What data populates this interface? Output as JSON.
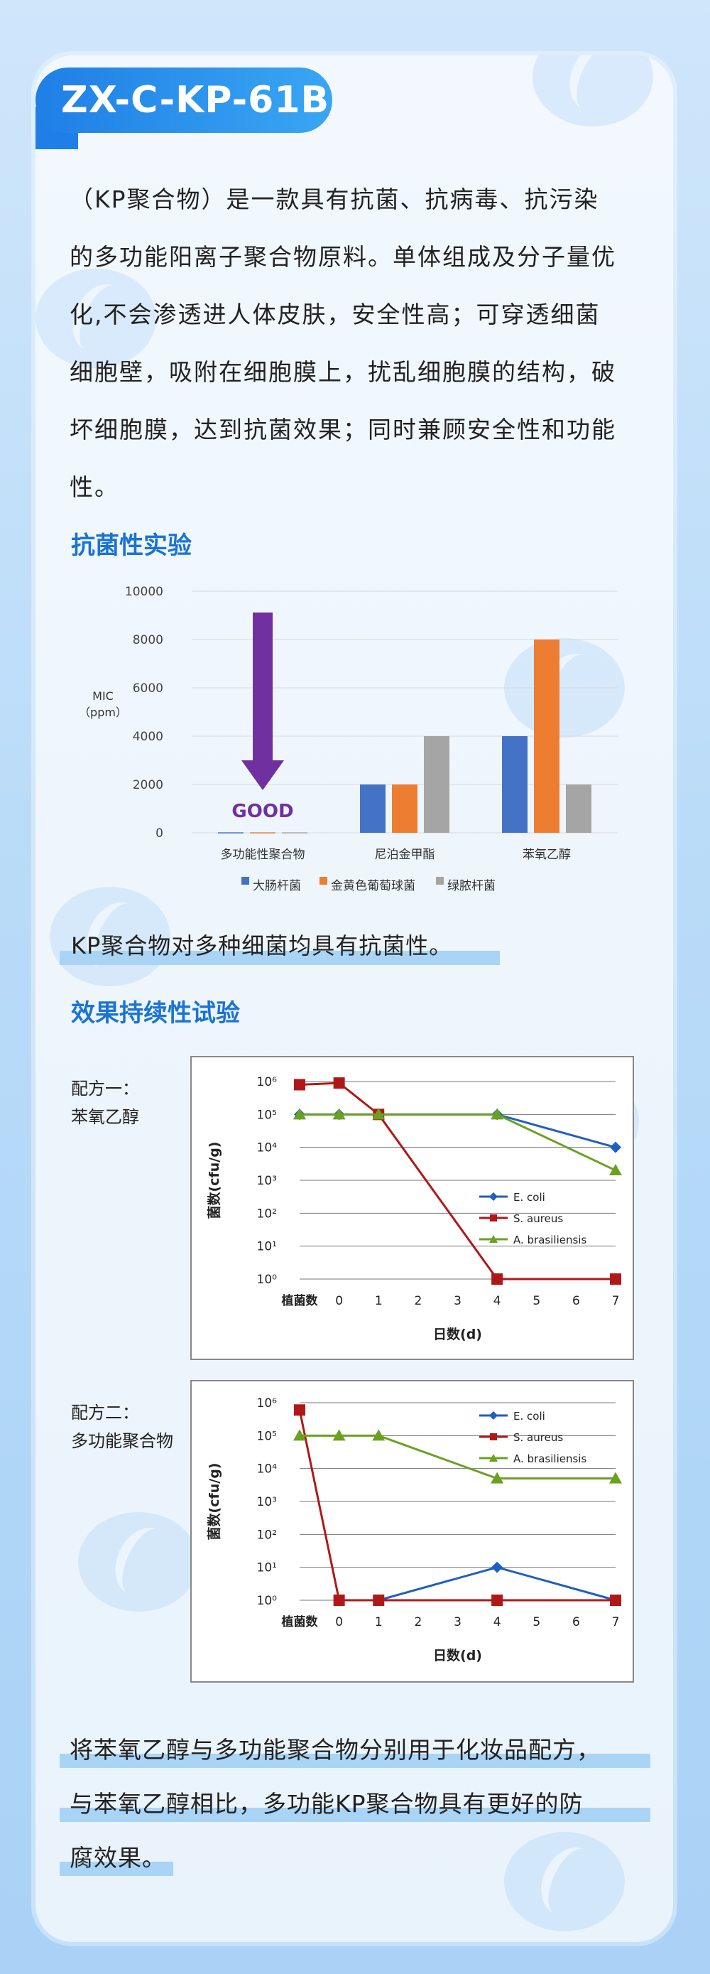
{
  "product_code": "ZX-C-KP-61B",
  "intro_lines": [
    "（KP聚合物）是一款具有抗菌、抗病毒、抗污染",
    "的多功能阳离子聚合物原料。单体组成及分子量优",
    "化,不会渗透进人体皮肤，安全性高；可穿透细菌",
    "细胞壁，吸附在细胞膜上，扰乱细胞膜的结构，破",
    "坏细胞膜，达到抗菌效果；同时兼顾安全性和功能",
    "性。"
  ],
  "sections": {
    "antibacterial_title": "抗菌性实验",
    "antibacterial_note": "KP聚合物对多种细菌均具有抗菌性。",
    "durability_title": "效果持续性试验",
    "conclusion_lines": [
      "将苯氧乙醇与多功能聚合物分别用于化妆品配方，",
      "与苯氧乙醇相比，多功能KP聚合物具有更好的防",
      "腐效果。"
    ]
  },
  "formula_labels": {
    "f1_line1": "配方一：",
    "f1_line2": "苯氧乙醇",
    "f2_line1": "配方二：",
    "f2_line2": "多功能聚合物"
  },
  "chart_data": [
    {
      "type": "bar",
      "ylabel_line1": "MIC",
      "ylabel_line2": "（ppm）",
      "ylim": [
        0,
        10000
      ],
      "yticks": [
        0,
        2000,
        4000,
        6000,
        8000,
        10000
      ],
      "categories": [
        "多功能性聚合物",
        "尼泊金甲酯",
        "苯氧乙醇"
      ],
      "series": [
        {
          "name": "大肠杆菌",
          "color": "#4472c4",
          "values": [
            20,
            2000,
            4000
          ]
        },
        {
          "name": "金黄色葡萄球菌",
          "color": "#ed7d31",
          "values": [
            20,
            2000,
            8000
          ]
        },
        {
          "name": "绿脓杆菌",
          "color": "#a5a5a5",
          "values": [
            20,
            4000,
            2000
          ]
        }
      ],
      "annotation": {
        "text": "GOOD",
        "color": "#7030a0"
      },
      "legend_position": "bottom",
      "grid": true
    },
    {
      "type": "line",
      "log_scale": true,
      "yticks": [
        "10⁰",
        "10¹",
        "10²",
        "10³",
        "10⁴",
        "10⁵",
        "10⁶"
      ],
      "xticks": [
        "植菌数",
        "0",
        "1",
        "2",
        "3",
        "4",
        "5",
        "6",
        "7"
      ],
      "xlabel": "日数(d)",
      "ylabel": "菌数(cfu/g)",
      "series": [
        {
          "name": "E. coli",
          "color": "#1f5fbf",
          "marker": "diamond",
          "x": [
            "植菌数",
            0,
            1,
            4,
            7
          ],
          "y": [
            100000,
            100000,
            100000,
            100000,
            10000
          ]
        },
        {
          "name": "S. aureus",
          "color": "#b01818",
          "marker": "square",
          "x": [
            "植菌数",
            0,
            1,
            4,
            7
          ],
          "y": [
            800000,
            900000,
            100000,
            1,
            1
          ]
        },
        {
          "name": "A. brasiliensis",
          "color": "#6aa121",
          "marker": "triangle",
          "x": [
            "植菌数",
            0,
            1,
            4,
            7
          ],
          "y": [
            100000,
            100000,
            100000,
            100000,
            2000
          ]
        }
      ],
      "legend_position": "right",
      "grid": true
    },
    {
      "type": "line",
      "log_scale": true,
      "yticks": [
        "10⁰",
        "10¹",
        "10²",
        "10³",
        "10⁴",
        "10⁵",
        "10⁶"
      ],
      "xticks": [
        "植菌数",
        "0",
        "1",
        "2",
        "3",
        "4",
        "5",
        "6",
        "7"
      ],
      "xlabel": "日数(d)",
      "ylabel": "菌数(cfu/g)",
      "series": [
        {
          "name": "E. coli",
          "color": "#1f5fbf",
          "marker": "diamond",
          "x": [
            0,
            1,
            4,
            7
          ],
          "y": [
            1,
            1,
            10,
            1
          ]
        },
        {
          "name": "S. aureus",
          "color": "#b01818",
          "marker": "square",
          "x": [
            "植菌数",
            0,
            1,
            4,
            7
          ],
          "y": [
            600000,
            1,
            1,
            1,
            1
          ]
        },
        {
          "name": "A. brasiliensis",
          "color": "#6aa121",
          "marker": "triangle",
          "x": [
            "植菌数",
            0,
            1,
            4,
            7
          ],
          "y": [
            100000,
            100000,
            100000,
            5000,
            5000
          ]
        }
      ],
      "legend_position": "top-right",
      "grid": true
    }
  ]
}
